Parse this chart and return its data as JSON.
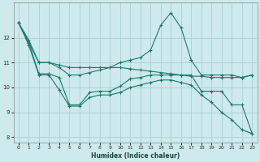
{
  "xlabel": "Humidex (Indice chaleur)",
  "background_color": "#ceeaec",
  "grid_color": "#aed4d6",
  "line_color": "#1a7a6e",
  "xlim": [
    -0.5,
    23.5
  ],
  "ylim": [
    7.8,
    13.4
  ],
  "yticks": [
    8,
    9,
    10,
    11,
    12
  ],
  "xticks": [
    0,
    1,
    2,
    3,
    4,
    5,
    6,
    7,
    8,
    9,
    10,
    11,
    12,
    13,
    14,
    15,
    16,
    17,
    18,
    19,
    20,
    21,
    22,
    23
  ],
  "series": [
    [
      12.6,
      11.8,
      11.0,
      11.0,
      10.8,
      10.5,
      10.5,
      10.6,
      10.7,
      10.8,
      11.0,
      11.1,
      11.2,
      11.5,
      12.5,
      13.0,
      12.4,
      11.1,
      10.5,
      10.5,
      10.5,
      10.5,
      10.4,
      10.5
    ],
    [
      12.6,
      11.9,
      11.0,
      11.0,
      10.9,
      10.8,
      10.8,
      10.8,
      10.8,
      10.8,
      10.8,
      10.75,
      10.7,
      10.65,
      10.6,
      10.55,
      10.5,
      10.45,
      10.45,
      10.4,
      10.4,
      10.4,
      10.4,
      10.5
    ],
    [
      12.6,
      11.8,
      10.55,
      10.55,
      10.4,
      9.3,
      9.3,
      9.8,
      9.85,
      9.85,
      10.05,
      10.35,
      10.4,
      10.5,
      10.5,
      10.5,
      10.5,
      10.5,
      9.85,
      9.85,
      9.85,
      9.3,
      9.3,
      8.15
    ],
    [
      12.6,
      11.7,
      10.5,
      10.5,
      9.9,
      9.25,
      9.25,
      9.6,
      9.7,
      9.7,
      9.8,
      10.0,
      10.1,
      10.2,
      10.3,
      10.3,
      10.2,
      10.1,
      9.7,
      9.4,
      9.0,
      8.7,
      8.3,
      8.15
    ]
  ]
}
